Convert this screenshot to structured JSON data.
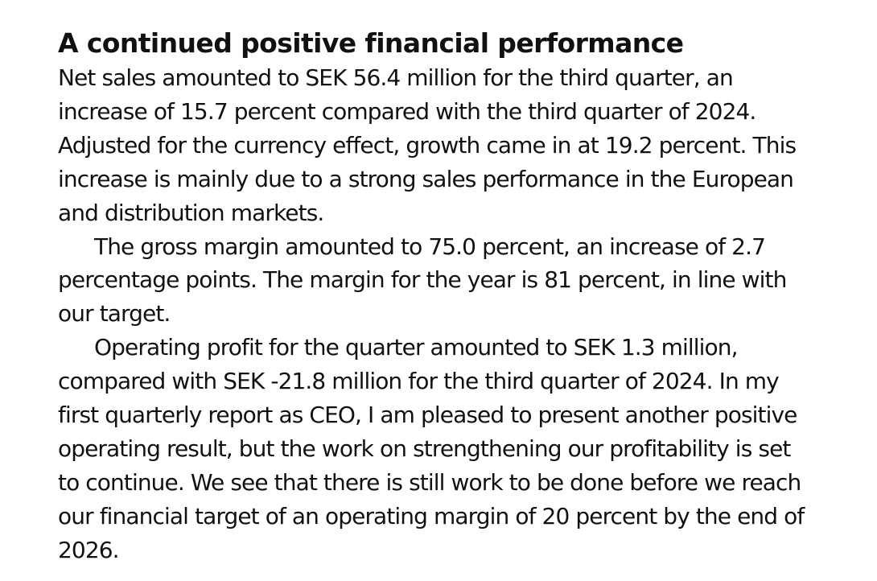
{
  "article": {
    "heading": "A continued positive financial performance",
    "paragraphs": [
      {
        "indent": false,
        "lines": [
          "Net sales amounted to SEK 56.4 million for the third quarter, an",
          "increase of 15.7 percent compared with the third quarter of 2024.",
          "Adjusted for the currency effect, growth came in at 19.2 percent. This",
          "increase is mainly due to a strong sales performance in the European",
          "and distribution markets."
        ]
      },
      {
        "indent": true,
        "lines": [
          "The gross margin amounted to 75.0 percent, an increase of 2.7",
          "percentage points. The margin for the year is 81 percent, in line with",
          "our target."
        ]
      },
      {
        "indent": true,
        "lines": [
          "Operating profit for the quarter amounted to SEK 1.3 million,",
          "compared with SEK -21.8 million for the third quarter of 2024. In my",
          "first quarterly report as CEO, I am pleased to present another positive",
          "operating result, but the work on strengthening our profitability is set",
          "to continue. We see that there is still work to be done before we reach",
          "our financial target of an operating margin of 20 percent by the end of",
          "2026."
        ]
      }
    ]
  }
}
